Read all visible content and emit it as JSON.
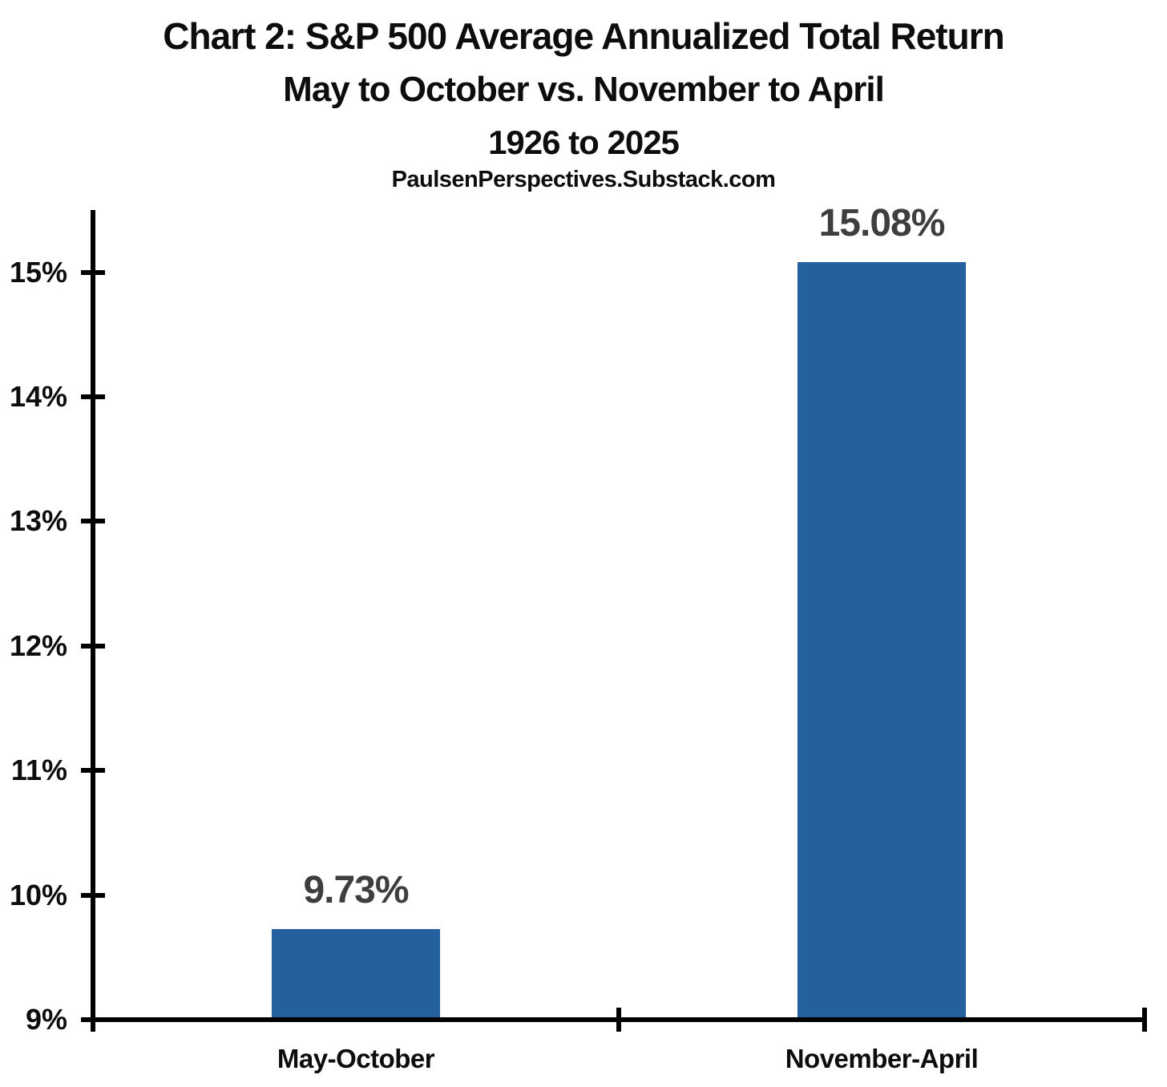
{
  "header": {
    "title_line1": "Chart 2: S&P 500 Average Annualized Total Return",
    "title_line2": "May to October vs. November to April",
    "title_line3": "1926 to 2025",
    "source": "PaulsenPerspectives.Substack.com"
  },
  "chart_data": {
    "type": "bar",
    "categories": [
      "May-October",
      "November-April"
    ],
    "values": [
      9.73,
      15.08
    ],
    "value_labels": [
      "9.73%",
      "15.08%"
    ],
    "title": "Chart 2: S&P 500 Average Annualized Total Return",
    "subtitle": "May to October vs. November to April",
    "period": "1926 to 2025",
    "source": "PaulsenPerspectives.Substack.com",
    "xlabel": "",
    "ylabel": "",
    "ylim": [
      9,
      15.5
    ],
    "ytick_values": [
      9,
      10,
      11,
      12,
      13,
      14,
      15
    ],
    "ytick_labels": [
      "9%",
      "10%",
      "11%",
      "12%",
      "13%",
      "14%",
      "15%"
    ],
    "grid": false,
    "legend": "none",
    "colors": {
      "bar": "#24609D",
      "value_label": "#3E3E3E",
      "axis": "#000000",
      "text": "#0D0D0D",
      "background": "#FFFFFF"
    }
  }
}
